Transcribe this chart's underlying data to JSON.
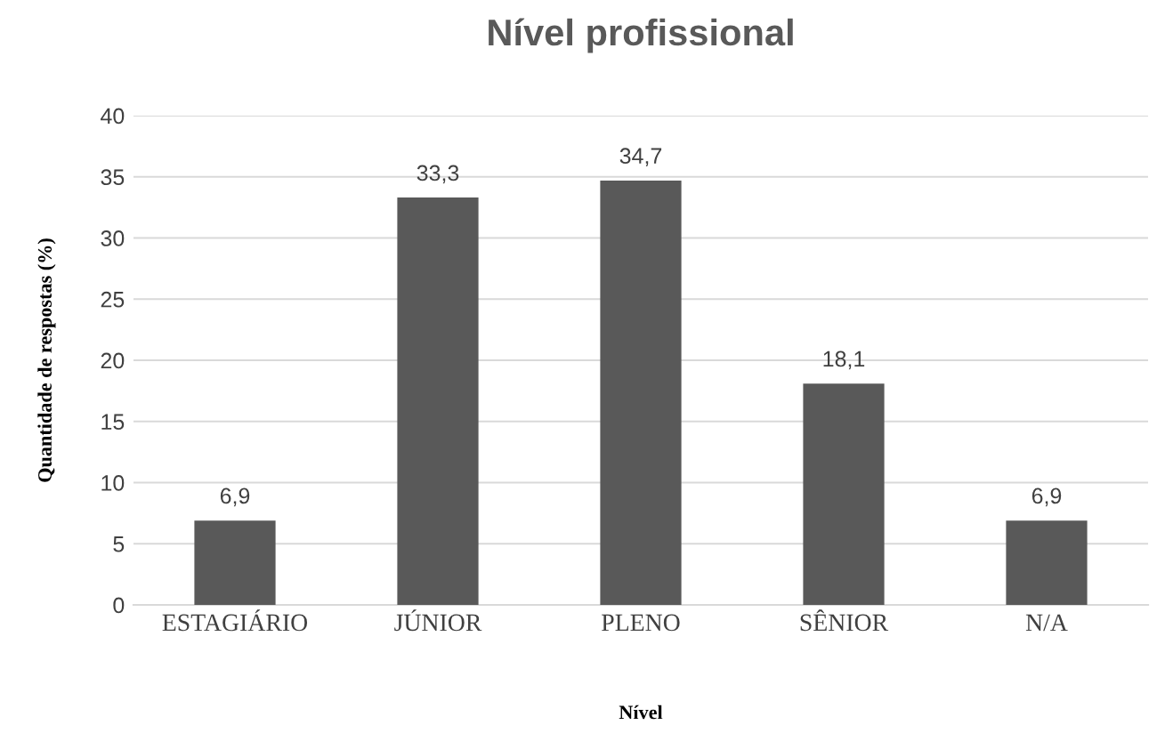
{
  "chart_data": {
    "type": "bar",
    "title": "Nível profissional",
    "xlabel": "Nível",
    "ylabel": "Quantidade de respostas (%)",
    "categories": [
      "ESTAGIÁRIO",
      "JÚNIOR",
      "PLENO",
      "SÊNIOR",
      "N/A"
    ],
    "values": [
      6.9,
      33.3,
      34.7,
      18.1,
      6.9
    ],
    "value_labels": [
      "6,9",
      "33,3",
      "34,7",
      "18,1",
      "6,9"
    ],
    "color": "#595959",
    "ylim": [
      0,
      40
    ],
    "yticks": [
      0,
      5,
      10,
      15,
      20,
      25,
      30,
      35,
      40
    ],
    "grid": "y",
    "legend": false
  }
}
